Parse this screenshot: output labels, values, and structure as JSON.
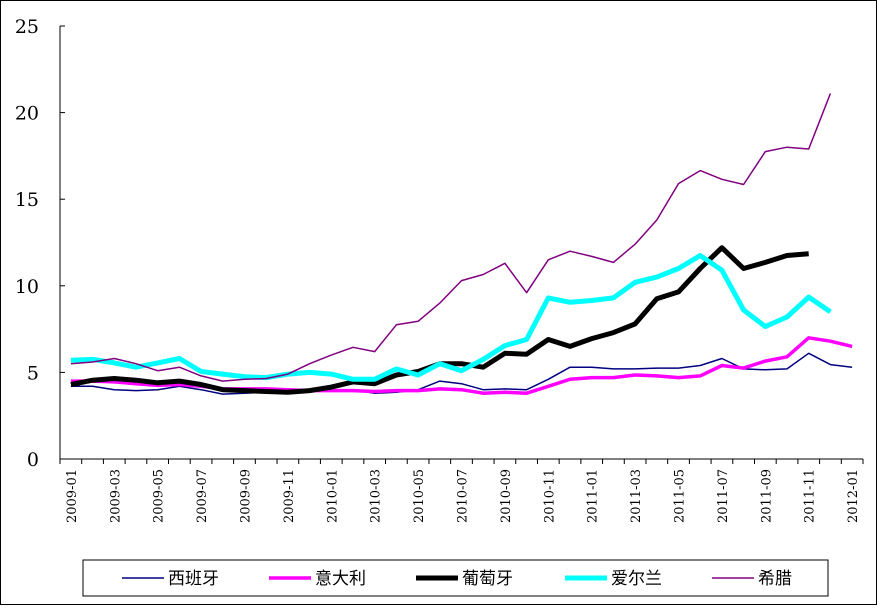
{
  "chart_data": {
    "type": "line",
    "title": "",
    "xlabel": "",
    "ylabel": "",
    "ylim": [
      0,
      25
    ],
    "yticks": [
      0,
      5,
      10,
      15,
      20,
      25
    ],
    "grid": false,
    "legend_position": "bottom",
    "x": [
      "2009-01",
      "2009-02",
      "2009-03",
      "2009-04",
      "2009-05",
      "2009-06",
      "2009-07",
      "2009-08",
      "2009-09",
      "2009-10",
      "2009-11",
      "2009-12",
      "2010-01",
      "2010-02",
      "2010-03",
      "2010-04",
      "2010-05",
      "2010-06",
      "2010-07",
      "2010-08",
      "2010-09",
      "2010-10",
      "2010-11",
      "2010-12",
      "2011-01",
      "2011-02",
      "2011-03",
      "2011-04",
      "2011-05",
      "2011-06",
      "2011-07",
      "2011-08",
      "2011-09",
      "2011-10",
      "2011-11",
      "2011-12",
      "2012-01"
    ],
    "x_tick_labels": [
      "2009-01",
      "2009-03",
      "2009-05",
      "2009-07",
      "2009-09",
      "2009-11",
      "2010-01",
      "2010-03",
      "2010-05",
      "2010-07",
      "2010-09",
      "2010-11",
      "2011-01",
      "2011-03",
      "2011-05",
      "2011-07",
      "2011-09",
      "2011-11",
      "2012-01"
    ],
    "series": [
      {
        "name": "西班牙",
        "color": "#000080",
        "width": 1.5,
        "values": [
          4.2,
          4.2,
          4.0,
          3.95,
          4.0,
          4.2,
          4.0,
          3.75,
          3.8,
          3.85,
          3.9,
          3.95,
          4.0,
          4.0,
          3.8,
          3.85,
          4.0,
          4.5,
          4.35,
          4.0,
          4.05,
          4.0,
          4.6,
          5.3,
          5.3,
          5.2,
          5.2,
          5.25,
          5.25,
          5.4,
          5.8,
          5.2,
          5.15,
          5.2,
          6.1,
          5.45,
          5.3
        ]
      },
      {
        "name": "意大利",
        "color": "#ff00ff",
        "width": 3.5,
        "values": [
          4.5,
          4.5,
          4.45,
          4.35,
          4.25,
          4.3,
          4.2,
          4.05,
          4.05,
          4.05,
          4.0,
          3.95,
          3.95,
          3.95,
          3.9,
          3.95,
          3.95,
          4.05,
          4.0,
          3.8,
          3.85,
          3.8,
          4.2,
          4.6,
          4.7,
          4.7,
          4.85,
          4.8,
          4.7,
          4.8,
          5.4,
          5.25,
          5.65,
          5.9,
          7.0,
          6.8,
          6.5
        ]
      },
      {
        "name": "葡萄牙",
        "color": "#000000",
        "width": 5,
        "values": [
          4.3,
          4.55,
          4.65,
          4.55,
          4.4,
          4.5,
          4.3,
          4.0,
          3.95,
          3.9,
          3.85,
          3.95,
          4.15,
          4.45,
          4.35,
          4.85,
          5.05,
          5.5,
          5.5,
          5.3,
          6.1,
          6.05,
          6.9,
          6.5,
          6.95,
          7.3,
          7.8,
          9.25,
          9.65,
          11.0,
          12.2,
          11.0,
          11.35,
          11.75,
          11.85,
          null,
          null
        ]
      },
      {
        "name": "爱尔兰",
        "color": "#00ffff",
        "width": 5,
        "values": [
          5.7,
          5.75,
          5.55,
          5.3,
          5.55,
          5.8,
          5.05,
          4.9,
          4.75,
          4.7,
          4.9,
          5.0,
          4.9,
          4.6,
          4.6,
          5.2,
          4.85,
          5.5,
          5.1,
          5.75,
          6.55,
          6.9,
          9.3,
          9.05,
          9.15,
          9.3,
          10.2,
          10.5,
          11.0,
          11.75,
          10.9,
          8.6,
          7.65,
          8.2,
          9.35,
          8.5,
          null
        ]
      },
      {
        "name": "希腊",
        "color": "#800080",
        "width": 1.5,
        "values": [
          5.5,
          5.6,
          5.8,
          5.5,
          5.1,
          5.3,
          4.8,
          4.5,
          4.6,
          4.65,
          4.9,
          5.5,
          6.0,
          6.45,
          6.2,
          7.75,
          7.95,
          9.0,
          10.3,
          10.65,
          11.3,
          9.6,
          11.5,
          12.0,
          11.7,
          11.35,
          12.4,
          13.8,
          15.9,
          16.65,
          16.15,
          15.85,
          17.75,
          18.0,
          17.9,
          21.1,
          null
        ]
      }
    ]
  }
}
